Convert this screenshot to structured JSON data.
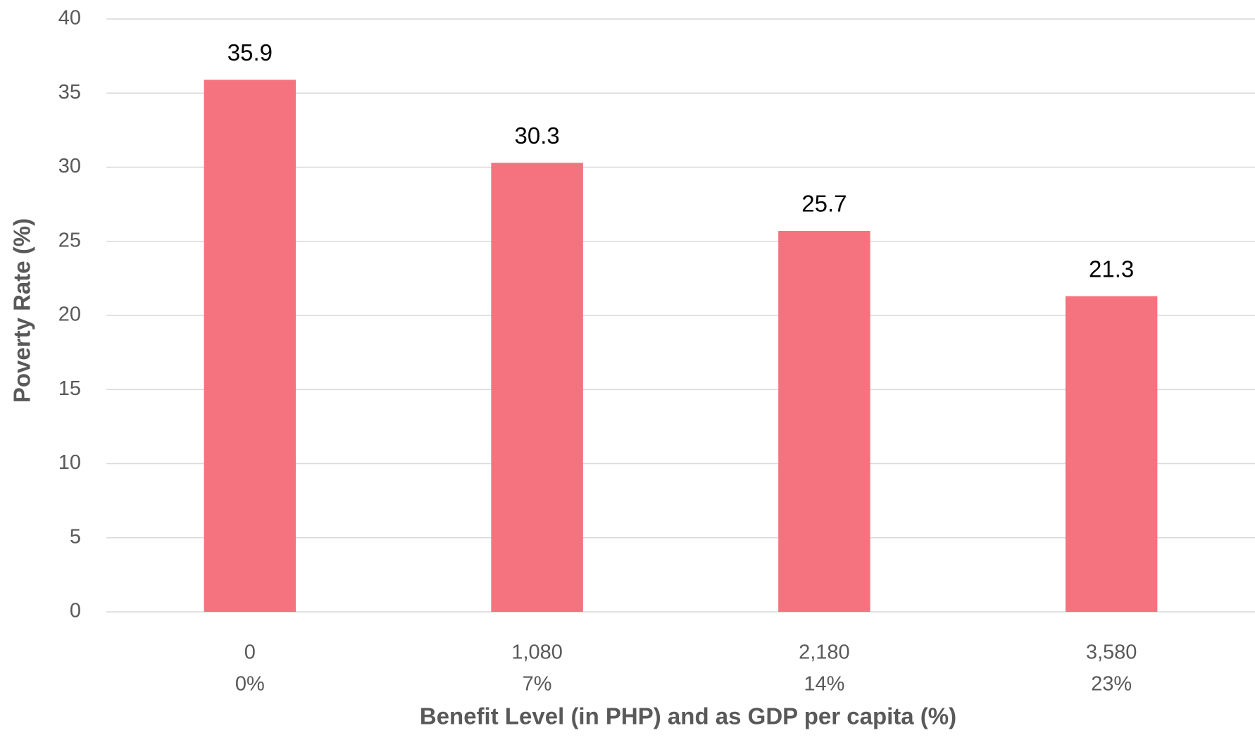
{
  "chart_data": {
    "type": "bar",
    "categories": [
      [
        "0",
        "0%"
      ],
      [
        "1,080",
        "7%"
      ],
      [
        "2,180",
        "14%"
      ],
      [
        "3,580",
        "23%"
      ]
    ],
    "values": [
      35.9,
      30.3,
      25.7,
      21.3
    ],
    "color": "#f4737f",
    "xlabel": "Benefit Level (in PHP) and as GDP per capita (%)",
    "ylabel": "Poverty Rate (%)",
    "ylim": [
      0,
      40
    ],
    "yticks": [
      0,
      5,
      10,
      15,
      20,
      25,
      30,
      35,
      40
    ],
    "grid": true
  }
}
